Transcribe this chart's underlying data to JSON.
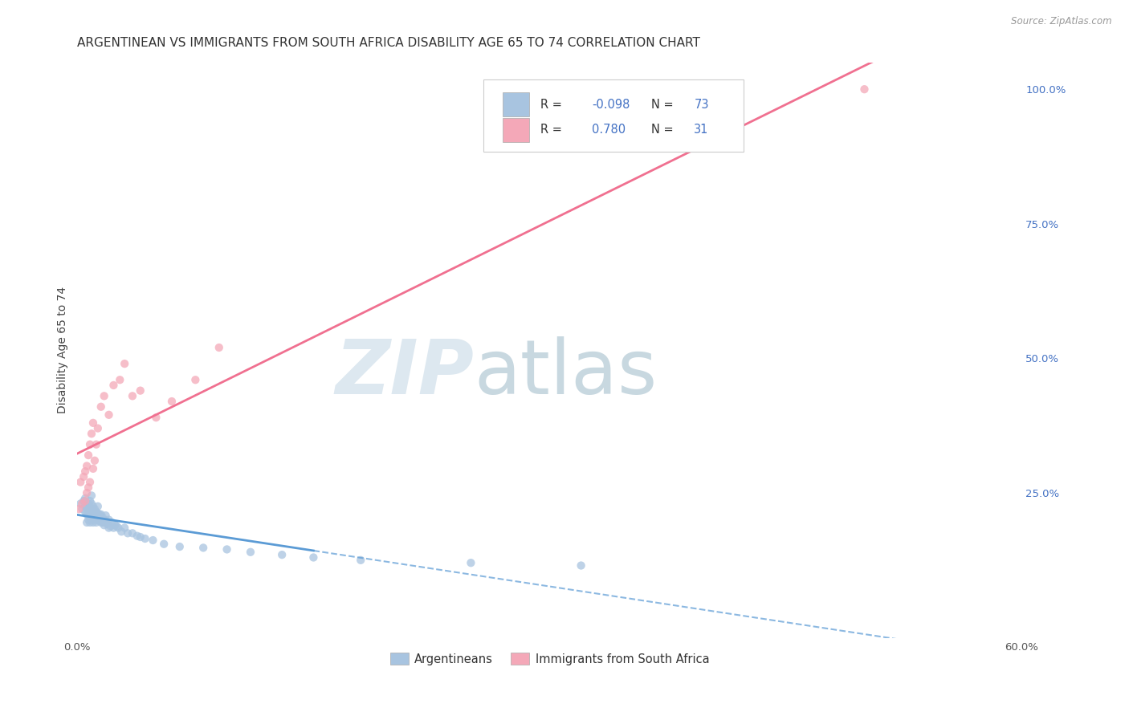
{
  "title": "ARGENTINEAN VS IMMIGRANTS FROM SOUTH AFRICA DISABILITY AGE 65 TO 74 CORRELATION CHART",
  "source": "Source: ZipAtlas.com",
  "ylabel": "Disability Age 65 to 74",
  "xlim": [
    0.0,
    0.6
  ],
  "ylim": [
    -0.02,
    1.05
  ],
  "argentinean_color": "#a8c4e0",
  "south_africa_color": "#f4a8b8",
  "argentinean_line_color": "#5b9bd5",
  "south_africa_line_color": "#f07090",
  "legend_label_1": "Argentineans",
  "legend_label_2": "Immigrants from South Africa",
  "R1": -0.098,
  "N1": 73,
  "R2": 0.78,
  "N2": 31,
  "watermark_zip": "ZIP",
  "watermark_atlas": "atlas",
  "background_color": "#ffffff",
  "grid_color": "#cccccc",
  "title_fontsize": 11,
  "axis_label_fontsize": 10,
  "tick_fontsize": 9.5,
  "argentinean_x": [
    0.002,
    0.003,
    0.004,
    0.005,
    0.005,
    0.005,
    0.006,
    0.006,
    0.006,
    0.007,
    0.007,
    0.007,
    0.007,
    0.008,
    0.008,
    0.008,
    0.008,
    0.008,
    0.009,
    0.009,
    0.009,
    0.009,
    0.009,
    0.01,
    0.01,
    0.01,
    0.01,
    0.011,
    0.011,
    0.011,
    0.012,
    0.012,
    0.012,
    0.013,
    0.013,
    0.013,
    0.014,
    0.014,
    0.015,
    0.015,
    0.016,
    0.016,
    0.017,
    0.017,
    0.018,
    0.018,
    0.019,
    0.02,
    0.02,
    0.021,
    0.022,
    0.023,
    0.024,
    0.025,
    0.026,
    0.028,
    0.03,
    0.032,
    0.035,
    0.038,
    0.04,
    0.043,
    0.048,
    0.055,
    0.065,
    0.08,
    0.095,
    0.11,
    0.13,
    0.15,
    0.18,
    0.25,
    0.32
  ],
  "argentinean_y": [
    0.23,
    0.22,
    0.235,
    0.215,
    0.225,
    0.24,
    0.195,
    0.21,
    0.225,
    0.2,
    0.21,
    0.22,
    0.23,
    0.195,
    0.205,
    0.215,
    0.225,
    0.235,
    0.2,
    0.21,
    0.22,
    0.23,
    0.245,
    0.195,
    0.205,
    0.215,
    0.225,
    0.2,
    0.21,
    0.22,
    0.195,
    0.205,
    0.215,
    0.2,
    0.212,
    0.225,
    0.198,
    0.21,
    0.195,
    0.21,
    0.195,
    0.205,
    0.19,
    0.2,
    0.195,
    0.208,
    0.192,
    0.185,
    0.2,
    0.188,
    0.195,
    0.185,
    0.19,
    0.188,
    0.185,
    0.178,
    0.185,
    0.175,
    0.175,
    0.17,
    0.168,
    0.165,
    0.162,
    0.155,
    0.15,
    0.148,
    0.145,
    0.14,
    0.135,
    0.13,
    0.125,
    0.12,
    0.115
  ],
  "south_africa_x": [
    0.001,
    0.002,
    0.003,
    0.004,
    0.005,
    0.005,
    0.006,
    0.006,
    0.007,
    0.007,
    0.008,
    0.008,
    0.009,
    0.01,
    0.01,
    0.011,
    0.012,
    0.013,
    0.015,
    0.017,
    0.02,
    0.023,
    0.027,
    0.03,
    0.035,
    0.04,
    0.05,
    0.06,
    0.075,
    0.09,
    0.5
  ],
  "south_africa_y": [
    0.22,
    0.27,
    0.23,
    0.28,
    0.235,
    0.29,
    0.25,
    0.3,
    0.26,
    0.32,
    0.27,
    0.34,
    0.36,
    0.295,
    0.38,
    0.31,
    0.34,
    0.37,
    0.41,
    0.43,
    0.395,
    0.45,
    0.46,
    0.49,
    0.43,
    0.44,
    0.39,
    0.42,
    0.46,
    0.52,
    1.0
  ]
}
